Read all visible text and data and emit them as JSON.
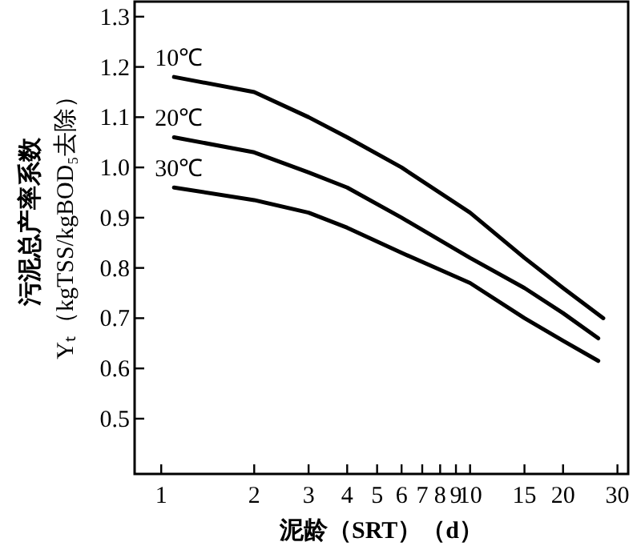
{
  "chart_data": {
    "type": "line",
    "xlabel": "泥龄（SRT）（d）",
    "ylabel": "污泥总产率系数\nYₜ（kgTSS/kgBOD₅去除）",
    "log": "x",
    "grid": false,
    "legend": false,
    "marker": "none",
    "line_style": "solid",
    "xlim": [
      0.82,
      32.5
    ],
    "xticks": [
      1,
      2,
      3,
      4,
      5,
      6,
      7,
      8,
      9,
      10,
      15,
      20,
      30
    ],
    "ylim": [
      0.39,
      1.33
    ],
    "yticks": [
      0.5,
      0.6,
      0.7,
      0.8,
      0.9,
      {
        "value": 1,
        "label": "1.0"
      },
      1.1,
      1.2,
      1.3
    ],
    "series": [
      {
        "name": "10℃",
        "color": "#000000",
        "x": [
          1.1,
          2,
          3,
          4,
          6,
          10,
          15,
          20,
          27
        ],
        "values": [
          1.18,
          1.15,
          1.1,
          1.06,
          1.0,
          0.91,
          0.82,
          0.76,
          0.7
        ]
      },
      {
        "name": "20℃",
        "color": "#000000",
        "x": [
          1.1,
          2,
          3,
          4,
          6,
          10,
          15,
          20,
          26
        ],
        "values": [
          1.06,
          1.03,
          0.99,
          0.96,
          0.9,
          0.82,
          0.76,
          0.71,
          0.66
        ]
      },
      {
        "name": "30℃",
        "color": "#000000",
        "x": [
          1.1,
          2,
          3,
          4,
          6,
          10,
          15,
          20,
          26
        ],
        "values": [
          0.96,
          0.935,
          0.91,
          0.88,
          0.83,
          0.77,
          0.7,
          0.655,
          0.615
        ]
      }
    ]
  }
}
